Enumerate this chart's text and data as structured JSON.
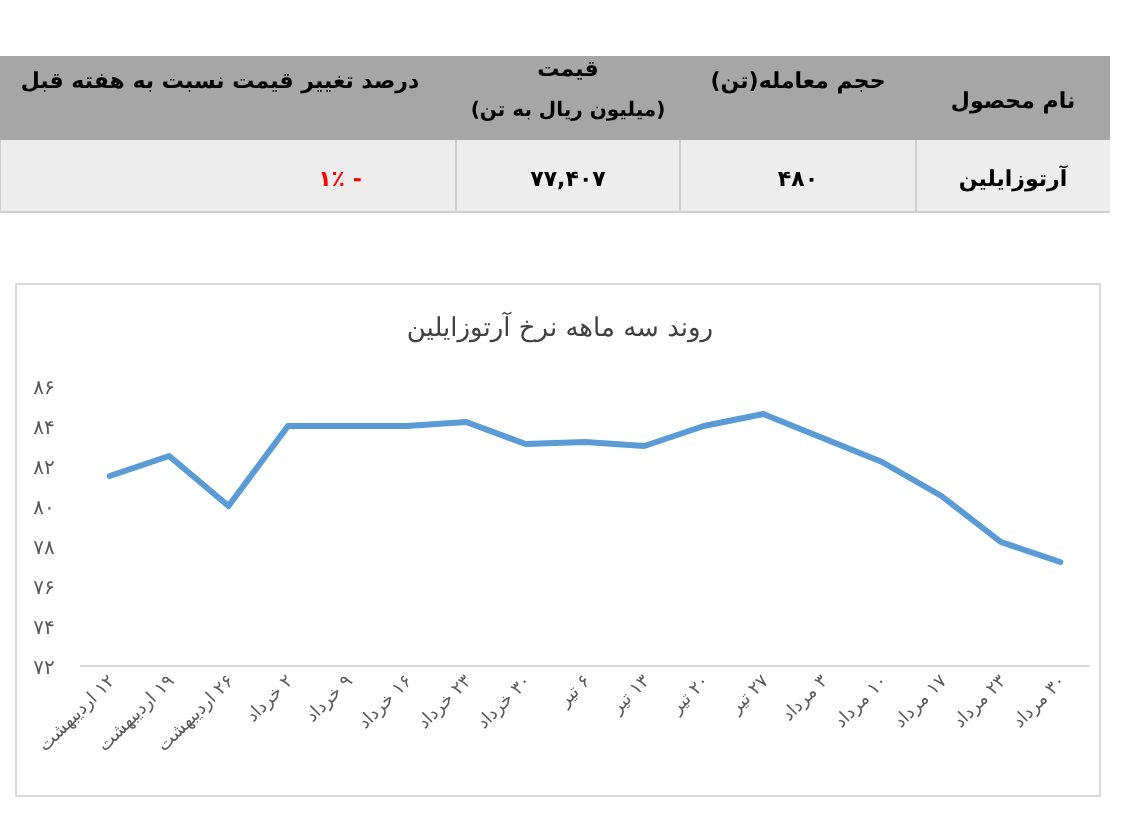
{
  "chart_data": [
    {
      "type": "other",
      "annotations": [
        "نام محصول",
        "حجم معامله(تن)",
        "قیمت",
        "(میلیون ریال به تن)",
        "درصد تغییر قیمت نسبت به هفته قبل",
        "آرتوزایلین",
        "۴۸۰",
        "۷۷,۴۰۷",
        "۱٪ -"
      ]
    },
    {
      "type": "line",
      "title": "روند سه ماهه نرخ آرتوزایلین",
      "categories": [
        "۱۲ اردیبهشت",
        "۱۹ اردیبهشت",
        "۲۶ اردیبهشت",
        "۲ خرداد",
        "۹ خرداد",
        "۱۶ خرداد",
        "۲۳ خرداد",
        "۳۰ خرداد",
        "۶ تیر",
        "۱۳ تیر",
        "۲۰ تیر",
        "۲۷ تیر",
        "۳ مرداد",
        "۱۰ مرداد",
        "۱۷ مرداد",
        "۲۳ مرداد",
        "۳۰ مرداد"
      ],
      "series": [
        {
          "color": "#5b9bd5",
          "values": [
            81.5,
            82.5,
            80.0,
            84.0,
            84.0,
            84.0,
            84.2,
            83.1,
            83.2,
            83.0,
            84.0,
            84.6,
            83.4,
            82.2,
            80.5,
            78.2,
            77.2
          ]
        }
      ],
      "ylim": [
        72,
        86
      ],
      "yticks": [
        {
          "value": 72,
          "label": "۷۲"
        },
        {
          "value": 74,
          "label": "۷۴"
        },
        {
          "value": 76,
          "label": "۷۶"
        },
        {
          "value": 78,
          "label": "۷۸"
        },
        {
          "value": 80,
          "label": "۸۰"
        },
        {
          "value": 82,
          "label": "۸۲"
        },
        {
          "value": 84,
          "label": "۸۴"
        },
        {
          "value": 86,
          "label": "۸۶"
        }
      ],
      "grid": false,
      "marker": "none",
      "line_style": "solid"
    }
  ]
}
